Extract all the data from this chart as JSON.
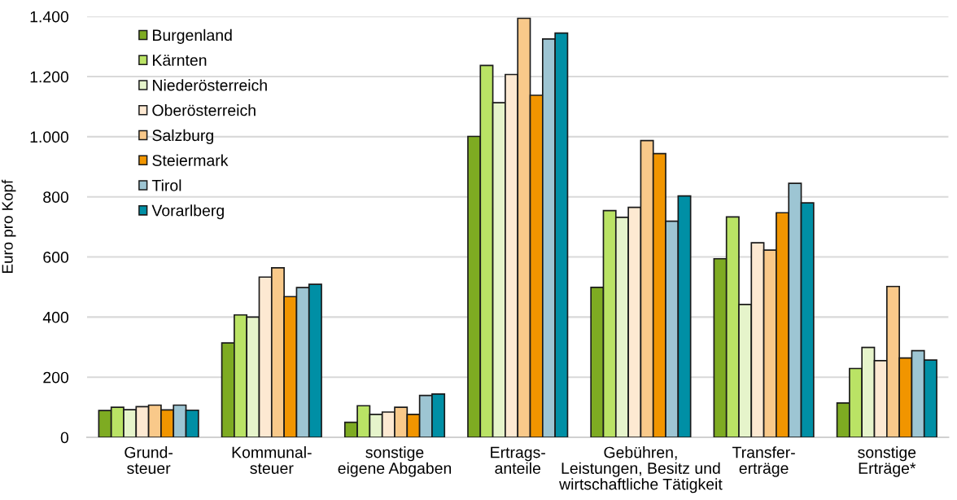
{
  "chart_data": {
    "type": "bar",
    "ylabel": "Euro pro Kopf",
    "categories": [
      "Grund-\nsteuer",
      "Kommunal-\nsteuer",
      "sonstige\neigene Abgaben",
      "Ertrags-\nanteile",
      "Gebühren,\nLeistungen, Besitz und\nwirtschaftliche Tätigkeit",
      "Transfer-\nerträge",
      "sonstige\nErträge*"
    ],
    "series": [
      {
        "name": "Burgenland",
        "color": "#7eab22",
        "values": [
          89,
          314,
          50,
          1001,
          499,
          594,
          114
        ]
      },
      {
        "name": "Kärnten",
        "color": "#bae365",
        "values": [
          100,
          407,
          105,
          1237,
          754,
          733,
          229
        ]
      },
      {
        "name": "Niederösterreich",
        "color": "#e6f4cb",
        "values": [
          92,
          400,
          76,
          1113,
          732,
          442,
          299
        ]
      },
      {
        "name": "Oberösterreich",
        "color": "#fde9d2",
        "values": [
          102,
          533,
          84,
          1207,
          765,
          647,
          255
        ]
      },
      {
        "name": "Salzburg",
        "color": "#f9c98a",
        "values": [
          107,
          564,
          100,
          1394,
          987,
          623,
          502
        ]
      },
      {
        "name": "Steiermark",
        "color": "#f19500",
        "values": [
          91,
          468,
          76,
          1138,
          944,
          747,
          264
        ]
      },
      {
        "name": "Tirol",
        "color": "#9dc5d3",
        "values": [
          107,
          498,
          139,
          1325,
          719,
          845,
          288
        ]
      },
      {
        "name": "Vorarlberg",
        "color": "#008fa5",
        "values": [
          90,
          509,
          144,
          1345,
          803,
          780,
          257
        ]
      }
    ],
    "ylim": [
      0,
      1400
    ],
    "yticks": [
      0,
      {
        "value": 200,
        "label": "200"
      },
      {
        "value": 400,
        "label": "400"
      },
      {
        "value": 600,
        "label": "600"
      },
      {
        "value": 800,
        "label": "800"
      },
      {
        "value": 1000,
        "label": "1.000"
      },
      {
        "value": 1200,
        "label": "1.200"
      },
      {
        "value": 1400,
        "label": "1.400"
      }
    ],
    "grid": "y",
    "legend": "top left"
  }
}
